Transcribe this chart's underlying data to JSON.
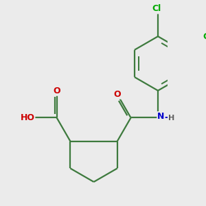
{
  "background_color": "#ebebeb",
  "bond_color": "#3d7a3d",
  "bond_width": 1.6,
  "atom_colors": {
    "O": "#cc0000",
    "N": "#0000cc",
    "Cl": "#00aa00",
    "H": "#606060",
    "C": "#3d7a3d"
  },
  "figsize": [
    3.0,
    3.0
  ],
  "dpi": 100,
  "scale": 0.85
}
